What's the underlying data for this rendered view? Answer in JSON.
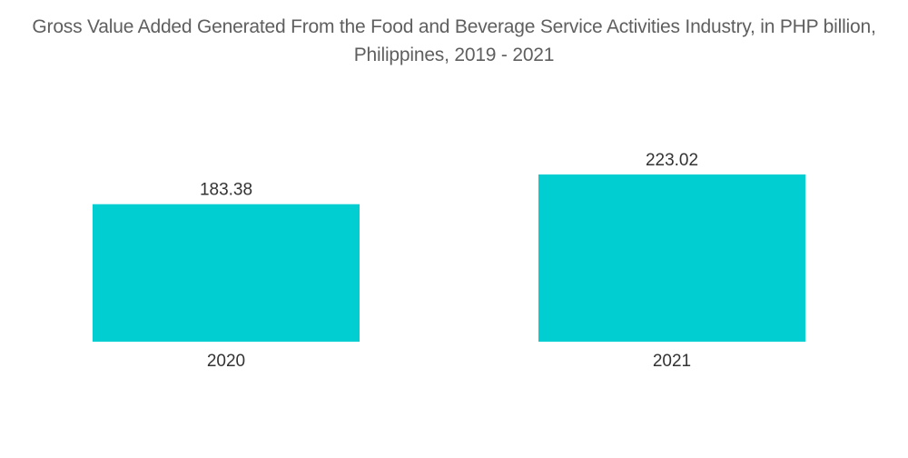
{
  "chart_data": {
    "type": "bar",
    "title": "Gross Value Added Generated From the Food and Beverage Service Activities Industry, in PHP billion, Philippines, 2019 - 2021",
    "categories": [
      "2020",
      "2021"
    ],
    "values": [
      183.38,
      223.02
    ],
    "value_labels": [
      "183.38",
      "223.02"
    ],
    "xlabel": "",
    "ylabel": "",
    "ylim": [
      0,
      223.02
    ],
    "grid": false,
    "legend": "none",
    "colors": {
      "bar": "#00ced1",
      "title": "#5f5f5f",
      "label": "#333333"
    }
  }
}
